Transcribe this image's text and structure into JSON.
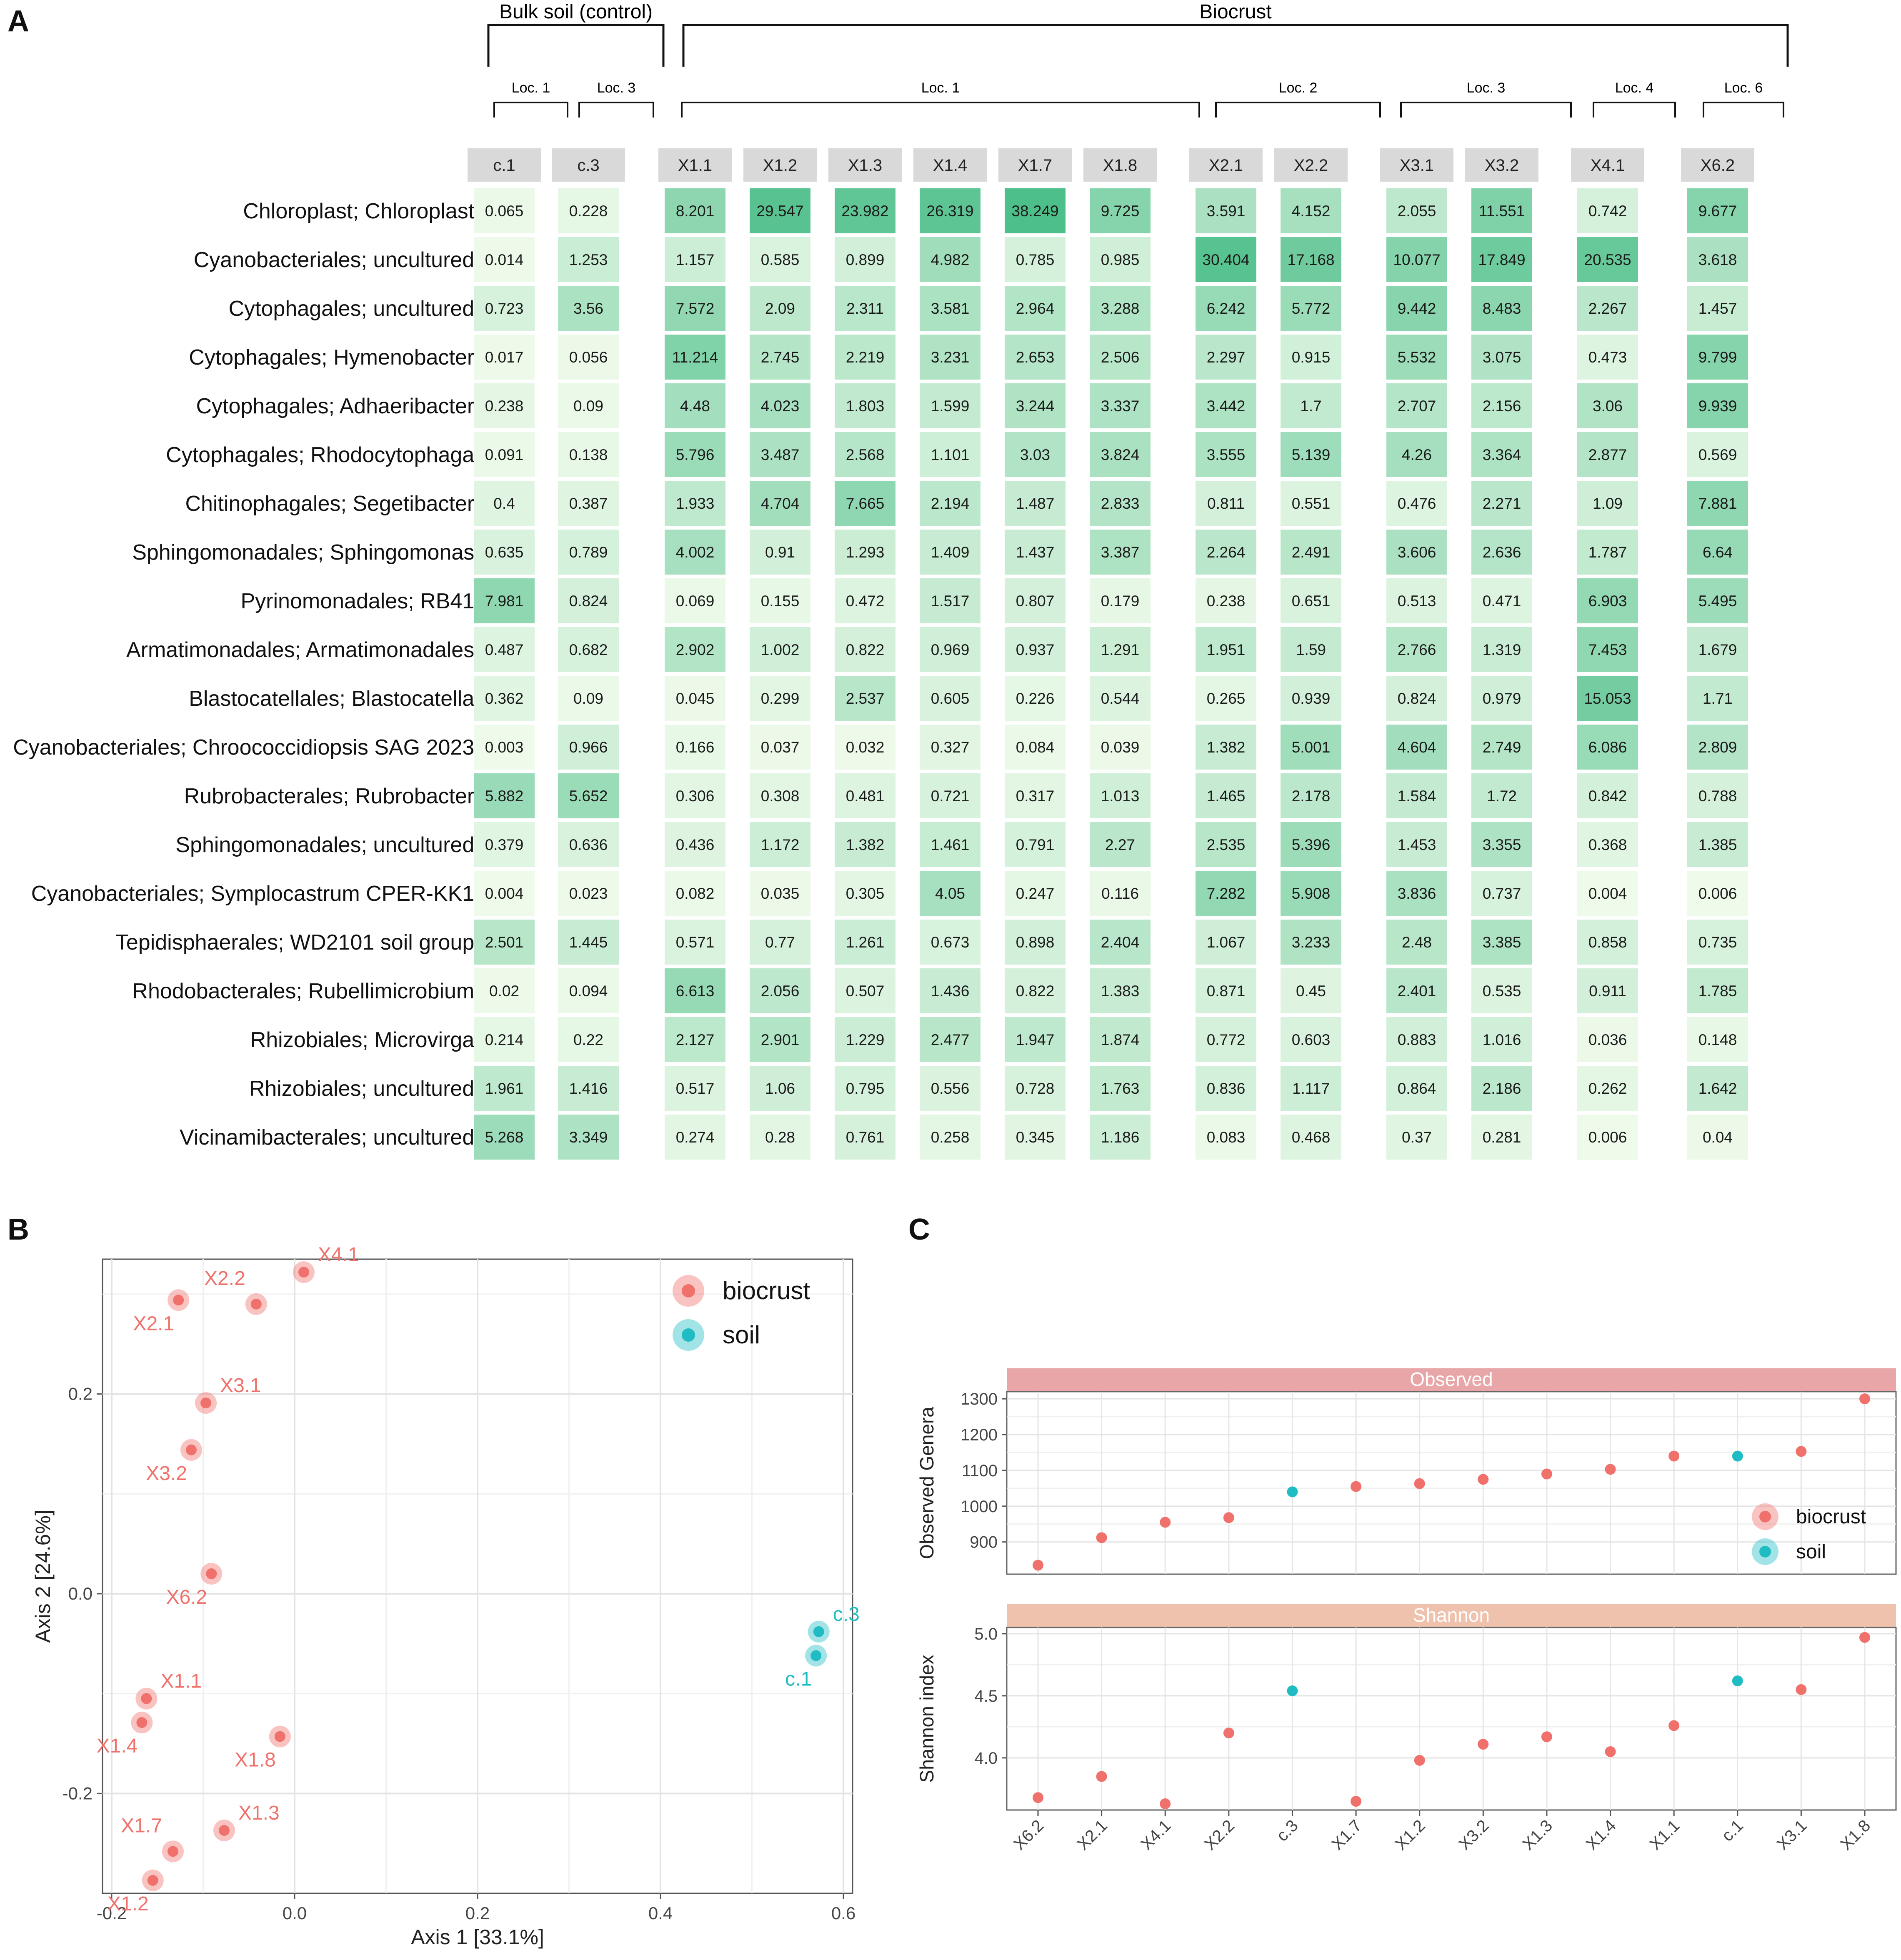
{
  "panel_labels": {
    "a": "A",
    "b": "B",
    "c": "C"
  },
  "chart_data": [
    {
      "type": "heatmap",
      "title": "",
      "group_labels": [
        "Bulk soil (control)",
        "Biocrust"
      ],
      "group_members": [
        [
          0,
          1
        ],
        [
          2,
          3,
          4,
          5,
          6,
          7,
          8,
          9,
          10,
          11,
          12,
          13
        ]
      ],
      "locations": [
        {
          "label": "Loc. 1",
          "columns": [
            0
          ]
        },
        {
          "label": "Loc. 3",
          "columns": [
            1
          ]
        },
        {
          "label": "Loc. 1",
          "columns": [
            2,
            3,
            4,
            5,
            6,
            7
          ]
        },
        {
          "label": "Loc. 2",
          "columns": [
            8,
            9
          ]
        },
        {
          "label": "Loc. 3",
          "columns": [
            10,
            11
          ]
        },
        {
          "label": "Loc. 4",
          "columns": [
            12
          ]
        },
        {
          "label": "Loc. 6",
          "columns": [
            13
          ]
        }
      ],
      "columns": [
        "c.1",
        "c.3",
        "X1.1",
        "X1.2",
        "X1.3",
        "X1.4",
        "X1.7",
        "X1.8",
        "X2.1",
        "X2.2",
        "X3.1",
        "X3.2",
        "X4.1",
        "X6.2"
      ],
      "rows": [
        "Chloroplast; Chloroplast",
        "Cyanobacteriales; uncultured",
        "Cytophagales; uncultured",
        "Cytophagales; Hymenobacter",
        "Cytophagales; Adhaeribacter",
        "Cytophagales; Rhodocytophaga",
        "Chitinophagales; Segetibacter",
        "Sphingomonadales; Sphingomonas",
        "Pyrinomonadales; RB41",
        "Armatimonadales; Armatimonadales",
        "Blastocatellales; Blastocatella",
        "Cyanobacteriales; Chroococcidiopsis  SAG 2023",
        "Rubrobacterales; Rubrobacter",
        "Sphingomonadales; uncultured",
        "Cyanobacteriales; Symplocastrum  CPER-KK1",
        "Tepidisphaerales; WD2101  soil  group",
        "Rhodobacterales; Rubellimicrobium",
        "Rhizobiales; Microvirga",
        "Rhizobiales; uncultured",
        "Vicinamibacterales; uncultured"
      ],
      "values": [
        [
          "0.065",
          "0.228",
          "8.201",
          "29.547",
          "23.982",
          "26.319",
          "38.249",
          "9.725",
          "3.591",
          "4.152",
          "2.055",
          "11.551",
          "0.742",
          "9.677"
        ],
        [
          "0.014",
          "1.253",
          "1.157",
          "0.585",
          "0.899",
          "4.982",
          "0.785",
          "0.985",
          "30.404",
          "17.168",
          "10.077",
          "17.849",
          "20.535",
          "3.618"
        ],
        [
          "0.723",
          "3.56",
          "7.572",
          "2.09",
          "2.311",
          "3.581",
          "2.964",
          "3.288",
          "6.242",
          "5.772",
          "9.442",
          "8.483",
          "2.267",
          "1.457"
        ],
        [
          "0.017",
          "0.056",
          "11.214",
          "2.745",
          "2.219",
          "3.231",
          "2.653",
          "2.506",
          "2.297",
          "0.915",
          "5.532",
          "3.075",
          "0.473",
          "9.799"
        ],
        [
          "0.238",
          "0.09",
          "4.48",
          "4.023",
          "1.803",
          "1.599",
          "3.244",
          "3.337",
          "3.442",
          "1.7",
          "2.707",
          "2.156",
          "3.06",
          "9.939"
        ],
        [
          "0.091",
          "0.138",
          "5.796",
          "3.487",
          "2.568",
          "1.101",
          "3.03",
          "3.824",
          "3.555",
          "5.139",
          "4.26",
          "3.364",
          "2.877",
          "0.569"
        ],
        [
          "0.4",
          "0.387",
          "1.933",
          "4.704",
          "7.665",
          "2.194",
          "1.487",
          "2.833",
          "0.811",
          "0.551",
          "0.476",
          "2.271",
          "1.09",
          "7.881"
        ],
        [
          "0.635",
          "0.789",
          "4.002",
          "0.91",
          "1.293",
          "1.409",
          "1.437",
          "3.387",
          "2.264",
          "2.491",
          "3.606",
          "2.636",
          "1.787",
          "6.64"
        ],
        [
          "7.981",
          "0.824",
          "0.069",
          "0.155",
          "0.472",
          "1.517",
          "0.807",
          "0.179",
          "0.238",
          "0.651",
          "0.513",
          "0.471",
          "6.903",
          "5.495"
        ],
        [
          "0.487",
          "0.682",
          "2.902",
          "1.002",
          "0.822",
          "0.969",
          "0.937",
          "1.291",
          "1.951",
          "1.59",
          "2.766",
          "1.319",
          "7.453",
          "1.679"
        ],
        [
          "0.362",
          "0.09",
          "0.045",
          "0.299",
          "2.537",
          "0.605",
          "0.226",
          "0.544",
          "0.265",
          "0.939",
          "0.824",
          "0.979",
          "15.053",
          "1.71"
        ],
        [
          "0.003",
          "0.966",
          "0.166",
          "0.037",
          "0.032",
          "0.327",
          "0.084",
          "0.039",
          "1.382",
          "5.001",
          "4.604",
          "2.749",
          "6.086",
          "2.809"
        ],
        [
          "5.882",
          "5.652",
          "0.306",
          "0.308",
          "0.481",
          "0.721",
          "0.317",
          "1.013",
          "1.465",
          "2.178",
          "1.584",
          "1.72",
          "0.842",
          "0.788"
        ],
        [
          "0.379",
          "0.636",
          "0.436",
          "1.172",
          "1.382",
          "1.461",
          "0.791",
          "2.27",
          "2.535",
          "5.396",
          "1.453",
          "3.355",
          "0.368",
          "1.385"
        ],
        [
          "0.004",
          "0.023",
          "0.082",
          "0.035",
          "0.305",
          "4.05",
          "0.247",
          "0.116",
          "7.282",
          "5.908",
          "3.836",
          "0.737",
          "0.004",
          "0.006"
        ],
        [
          "2.501",
          "1.445",
          "0.571",
          "0.77",
          "1.261",
          "0.673",
          "0.898",
          "2.404",
          "1.067",
          "3.233",
          "2.48",
          "3.385",
          "0.858",
          "0.735"
        ],
        [
          "0.02",
          "0.094",
          "6.613",
          "2.056",
          "0.507",
          "1.436",
          "0.822",
          "1.383",
          "0.871",
          "0.45",
          "2.401",
          "0.535",
          "0.911",
          "1.785"
        ],
        [
          "0.214",
          "0.22",
          "2.127",
          "2.901",
          "1.229",
          "2.477",
          "1.947",
          "1.874",
          "0.772",
          "0.603",
          "0.883",
          "1.016",
          "0.036",
          "0.148"
        ],
        [
          "1.961",
          "1.416",
          "0.517",
          "1.06",
          "0.795",
          "0.556",
          "0.728",
          "1.763",
          "0.836",
          "1.117",
          "0.864",
          "2.186",
          "0.262",
          "1.642"
        ],
        [
          "5.268",
          "3.349",
          "0.274",
          "0.28",
          "0.761",
          "0.258",
          "0.345",
          "1.186",
          "0.083",
          "0.468",
          "0.37",
          "0.281",
          "0.006",
          "0.04"
        ]
      ],
      "colors": {
        "low": "#eefaea",
        "high": "#4dbf8a"
      }
    },
    {
      "type": "scatter",
      "xlabel": "Axis 1 [33.1%]",
      "ylabel": "Axis 2 [24.6%]",
      "xlim": [
        -0.21,
        0.61
      ],
      "ylim": [
        -0.3,
        0.335
      ],
      "xticks": [
        -0.2,
        0.0,
        0.2,
        0.4,
        0.6
      ],
      "xtick_labels": [
        "-0.2",
        "0.0",
        "0.2",
        "0.4",
        "0.6"
      ],
      "yticks": [
        -0.2,
        0.0,
        0.2
      ],
      "ytick_labels": [
        "-0.2",
        "0.0",
        "0.2"
      ],
      "legend": {
        "position": "top-right",
        "entries": [
          "biocrust",
          "soil"
        ]
      },
      "colors": {
        "biocrust": "#f0716b",
        "soil": "#1fbcc4"
      },
      "points": [
        {
          "label": "X4.1",
          "x": 0.01,
          "y": 0.322,
          "group": "biocrust",
          "label_side": "upper-right"
        },
        {
          "label": "X2.2",
          "x": -0.042,
          "y": 0.29,
          "group": "biocrust",
          "label_side": "upper-left"
        },
        {
          "label": "X2.1",
          "x": -0.127,
          "y": 0.294,
          "group": "biocrust",
          "label_side": "lower-left"
        },
        {
          "label": "X3.1",
          "x": -0.097,
          "y": 0.191,
          "group": "biocrust",
          "label_side": "upper-right"
        },
        {
          "label": "X3.2",
          "x": -0.113,
          "y": 0.144,
          "group": "biocrust",
          "label_side": "lower-left"
        },
        {
          "label": "X6.2",
          "x": -0.091,
          "y": 0.02,
          "group": "biocrust",
          "label_side": "lower-left"
        },
        {
          "label": "X1.1",
          "x": -0.162,
          "y": -0.105,
          "group": "biocrust",
          "label_side": "upper-right"
        },
        {
          "label": "X1.4",
          "x": -0.167,
          "y": -0.129,
          "group": "biocrust",
          "label_side": "lower-left"
        },
        {
          "label": "X1.8",
          "x": -0.016,
          "y": -0.143,
          "group": "biocrust",
          "label_side": "lower-left"
        },
        {
          "label": "X1.3",
          "x": -0.077,
          "y": -0.237,
          "group": "biocrust",
          "label_side": "upper-right"
        },
        {
          "label": "X1.7",
          "x": -0.133,
          "y": -0.258,
          "group": "biocrust",
          "label_side": "upper-left"
        },
        {
          "label": "X1.2",
          "x": -0.155,
          "y": -0.287,
          "group": "biocrust",
          "label_side": "lower-left"
        },
        {
          "label": "c.3",
          "x": 0.573,
          "y": -0.038,
          "group": "soil",
          "label_side": "upper-right"
        },
        {
          "label": "c.1",
          "x": 0.57,
          "y": -0.062,
          "group": "soil",
          "label_side": "lower-left"
        }
      ]
    },
    {
      "type": "scatter",
      "facets": [
        "Observed",
        "Shannon"
      ],
      "categories": [
        "X6.2",
        "X2.1",
        "X4.1",
        "X2.2",
        "c.3",
        "X1.7",
        "X1.2",
        "X3.2",
        "X1.3",
        "X1.4",
        "X1.1",
        "c.1",
        "X3.1",
        "X1.8"
      ],
      "groups": [
        "biocrust",
        "biocrust",
        "biocrust",
        "biocrust",
        "soil",
        "biocrust",
        "biocrust",
        "biocrust",
        "biocrust",
        "biocrust",
        "biocrust",
        "soil",
        "biocrust",
        "biocrust"
      ],
      "series": [
        {
          "name": "Observed",
          "ylabel": "Observed Genera",
          "ylim": [
            810,
            1320
          ],
          "yticks": [
            900,
            1000,
            1100,
            1200,
            1300
          ],
          "values": [
            835,
            912,
            955,
            968,
            1040,
            1055,
            1063,
            1075,
            1090,
            1103,
            1140,
            1140,
            1153,
            1300
          ]
        },
        {
          "name": "Shannon",
          "ylabel": "Shannon index",
          "ylim": [
            3.58,
            5.05
          ],
          "yticks": [
            4.0,
            4.5,
            5.0
          ],
          "ytick_labels": [
            "4.0",
            "4.5",
            "5.0"
          ],
          "values": [
            3.68,
            3.85,
            3.63,
            4.2,
            4.54,
            3.65,
            3.98,
            4.11,
            4.17,
            4.05,
            4.26,
            4.62,
            4.55,
            4.97
          ]
        }
      ],
      "legend": {
        "position": "right",
        "entries": [
          "biocrust",
          "soil"
        ]
      },
      "colors": {
        "biocrust": "#f0716b",
        "soil": "#1fbcc4",
        "observed_strip": "#e8a6a8",
        "shannon_strip": "#eec2ad"
      }
    }
  ]
}
